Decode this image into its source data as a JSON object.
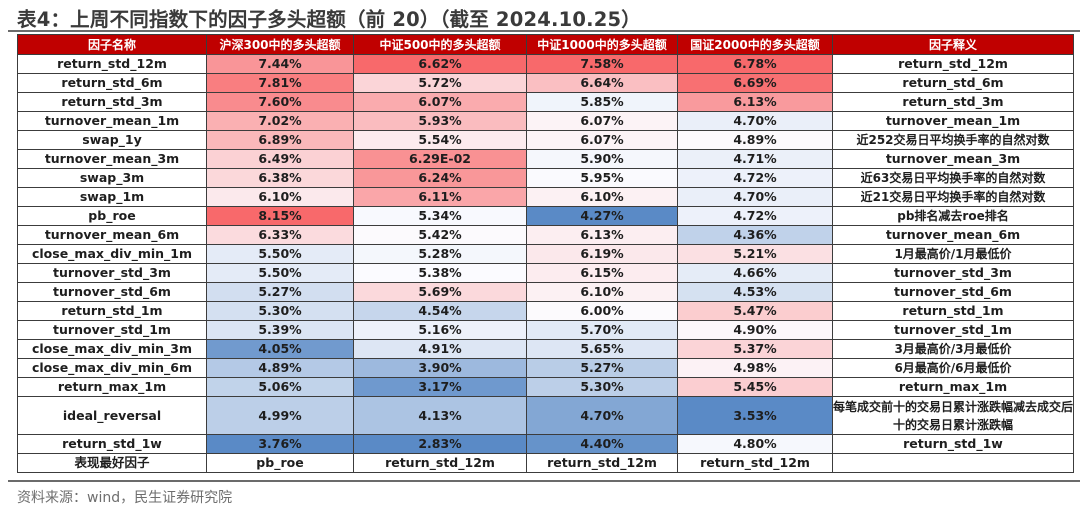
{
  "title": "表4：上周不同指数下的因子多头超额（前 20）（截至 2024.10.25）",
  "headers": [
    "因子名称",
    "沪深300中的多头超额",
    "中证500中的多头超额",
    "中证1000中的多头超额",
    "国证2000中的多头超额",
    "因子释义"
  ],
  "colors": {
    "header_bg": "#c00000",
    "header_text": "#ffffff",
    "heat_high": "#f8696b",
    "heat_mid": "#fcfcff",
    "heat_low": "#5a8ac6",
    "border": "#3c3c3c"
  },
  "rows": [
    {
      "factor": "return_std_12m",
      "hs300": "7.44%",
      "zz500": "6.62%",
      "zz1000": "7.58%",
      "gz2000": "6.78%",
      "desc": "return_std_12m"
    },
    {
      "factor": "return_std_6m",
      "hs300": "7.81%",
      "zz500": "5.72%",
      "zz1000": "6.64%",
      "gz2000": "6.69%",
      "desc": "return_std_6m"
    },
    {
      "factor": "return_std_3m",
      "hs300": "7.60%",
      "zz500": "6.07%",
      "zz1000": "5.85%",
      "gz2000": "6.13%",
      "desc": "return_std_3m"
    },
    {
      "factor": "turnover_mean_1m",
      "hs300": "7.02%",
      "zz500": "5.93%",
      "zz1000": "6.07%",
      "gz2000": "4.70%",
      "desc": "turnover_mean_1m"
    },
    {
      "factor": "swap_1y",
      "hs300": "6.89%",
      "zz500": "5.54%",
      "zz1000": "6.07%",
      "gz2000": "4.89%",
      "desc": "近252交易日平均换手率的自然对数"
    },
    {
      "factor": "turnover_mean_3m",
      "hs300": "6.49%",
      "zz500": "6.29E-02",
      "zz1000": "5.90%",
      "gz2000": "4.71%",
      "desc": "turnover_mean_3m"
    },
    {
      "factor": "swap_3m",
      "hs300": "6.38%",
      "zz500": "6.24%",
      "zz1000": "5.95%",
      "gz2000": "4.72%",
      "desc": "近63交易日平均换手率的自然对数"
    },
    {
      "factor": "swap_1m",
      "hs300": "6.10%",
      "zz500": "6.11%",
      "zz1000": "6.10%",
      "gz2000": "4.70%",
      "desc": "近21交易日平均换手率的自然对数"
    },
    {
      "factor": "pb_roe",
      "hs300": "8.15%",
      "zz500": "5.34%",
      "zz1000": "4.27%",
      "gz2000": "4.72%",
      "desc": "pb排名减去roe排名"
    },
    {
      "factor": "turnover_mean_6m",
      "hs300": "6.33%",
      "zz500": "5.42%",
      "zz1000": "6.13%",
      "gz2000": "4.36%",
      "desc": "turnover_mean_6m"
    },
    {
      "factor": "close_max_div_min_1m",
      "hs300": "5.50%",
      "zz500": "5.28%",
      "zz1000": "6.19%",
      "gz2000": "5.21%",
      "desc": "1月最高价/1月最低价"
    },
    {
      "factor": "turnover_std_3m",
      "hs300": "5.50%",
      "zz500": "5.38%",
      "zz1000": "6.15%",
      "gz2000": "4.66%",
      "desc": "turnover_std_3m"
    },
    {
      "factor": "turnover_std_6m",
      "hs300": "5.27%",
      "zz500": "5.69%",
      "zz1000": "6.10%",
      "gz2000": "4.53%",
      "desc": "turnover_std_6m"
    },
    {
      "factor": "return_std_1m",
      "hs300": "5.30%",
      "zz500": "4.54%",
      "zz1000": "6.00%",
      "gz2000": "5.47%",
      "desc": "return_std_1m"
    },
    {
      "factor": "turnover_std_1m",
      "hs300": "5.39%",
      "zz500": "5.16%",
      "zz1000": "5.70%",
      "gz2000": "4.90%",
      "desc": "turnover_std_1m"
    },
    {
      "factor": "close_max_div_min_3m",
      "hs300": "4.05%",
      "zz500": "4.91%",
      "zz1000": "5.65%",
      "gz2000": "5.37%",
      "desc": "3月最高价/3月最低价"
    },
    {
      "factor": "close_max_div_min_6m",
      "hs300": "4.89%",
      "zz500": "3.90%",
      "zz1000": "5.27%",
      "gz2000": "4.98%",
      "desc": "6月最高价/6月最低价"
    },
    {
      "factor": "return_max_1m",
      "hs300": "5.06%",
      "zz500": "3.17%",
      "zz1000": "5.30%",
      "gz2000": "5.45%",
      "desc": "return_max_1m"
    },
    {
      "factor": "ideal_reversal",
      "hs300": "4.99%",
      "zz500": "4.13%",
      "zz1000": "4.70%",
      "gz2000": "3.53%",
      "desc": "每笔成交前十的交易日累计涨跌幅减去成交后十的交易日累计涨跌幅",
      "tall": true
    },
    {
      "factor": "return_std_1w",
      "hs300": "3.76%",
      "zz500": "2.83%",
      "zz1000": "4.40%",
      "gz2000": "4.80%",
      "desc": "return_std_1w"
    }
  ],
  "best_row": {
    "label": "表现最好因子",
    "hs300": "pb_roe",
    "zz500": "return_std_12m",
    "zz1000": "return_std_12m",
    "gz2000": "return_std_12m",
    "desc": ""
  },
  "source": "资料来源：wind，民生证券研究院"
}
